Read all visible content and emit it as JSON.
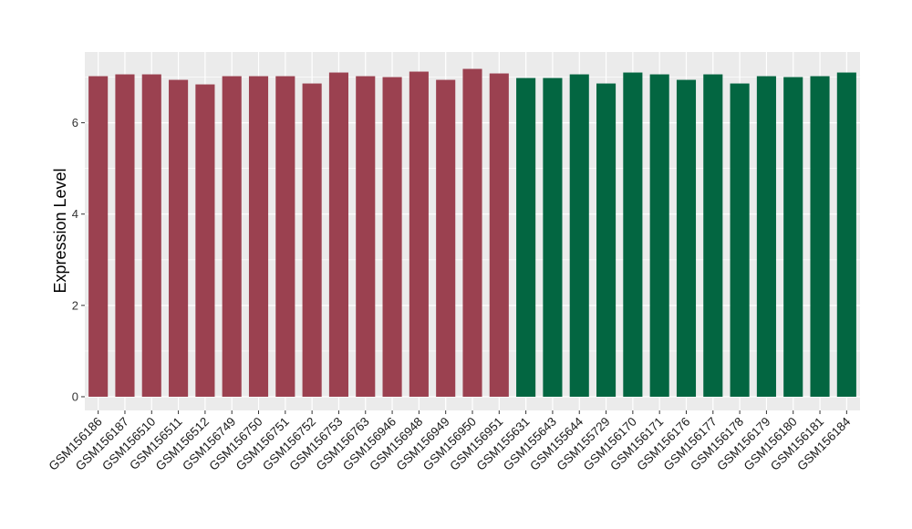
{
  "chart_data": {
    "type": "bar",
    "ylabel": "Expression Level",
    "xlabel": "",
    "ylim": [
      -0.3,
      7.55
    ],
    "yticks": [
      0,
      2,
      4,
      6
    ],
    "grid": true,
    "categories": [
      "GSM156186",
      "GSM156187",
      "GSM156510",
      "GSM156511",
      "GSM156512",
      "GSM156749",
      "GSM156750",
      "GSM156751",
      "GSM156752",
      "GSM156753",
      "GSM156763",
      "GSM156946",
      "GSM156948",
      "GSM156949",
      "GSM156950",
      "GSM156951",
      "GSM155631",
      "GSM155643",
      "GSM155644",
      "GSM155729",
      "GSM156170",
      "GSM156171",
      "GSM156176",
      "GSM156177",
      "GSM156178",
      "GSM156179",
      "GSM156180",
      "GSM156181",
      "GSM156184"
    ],
    "values": [
      7.02,
      7.06,
      7.06,
      6.94,
      6.84,
      7.02,
      7.02,
      7.02,
      6.86,
      7.1,
      7.02,
      7.0,
      7.12,
      6.94,
      7.18,
      7.08,
      6.98,
      6.98,
      7.06,
      6.86,
      7.1,
      7.06,
      6.94,
      7.06,
      6.86,
      7.02,
      7.0,
      7.02,
      7.1
    ],
    "groups": [
      0,
      0,
      0,
      0,
      0,
      0,
      0,
      0,
      0,
      0,
      0,
      0,
      0,
      0,
      0,
      0,
      1,
      1,
      1,
      1,
      1,
      1,
      1,
      1,
      1,
      1,
      1,
      1,
      1
    ],
    "colors": [
      "#9b4150",
      "#036641"
    ],
    "panel_background": "#ebebeb",
    "grid_color": "#ffffff"
  }
}
